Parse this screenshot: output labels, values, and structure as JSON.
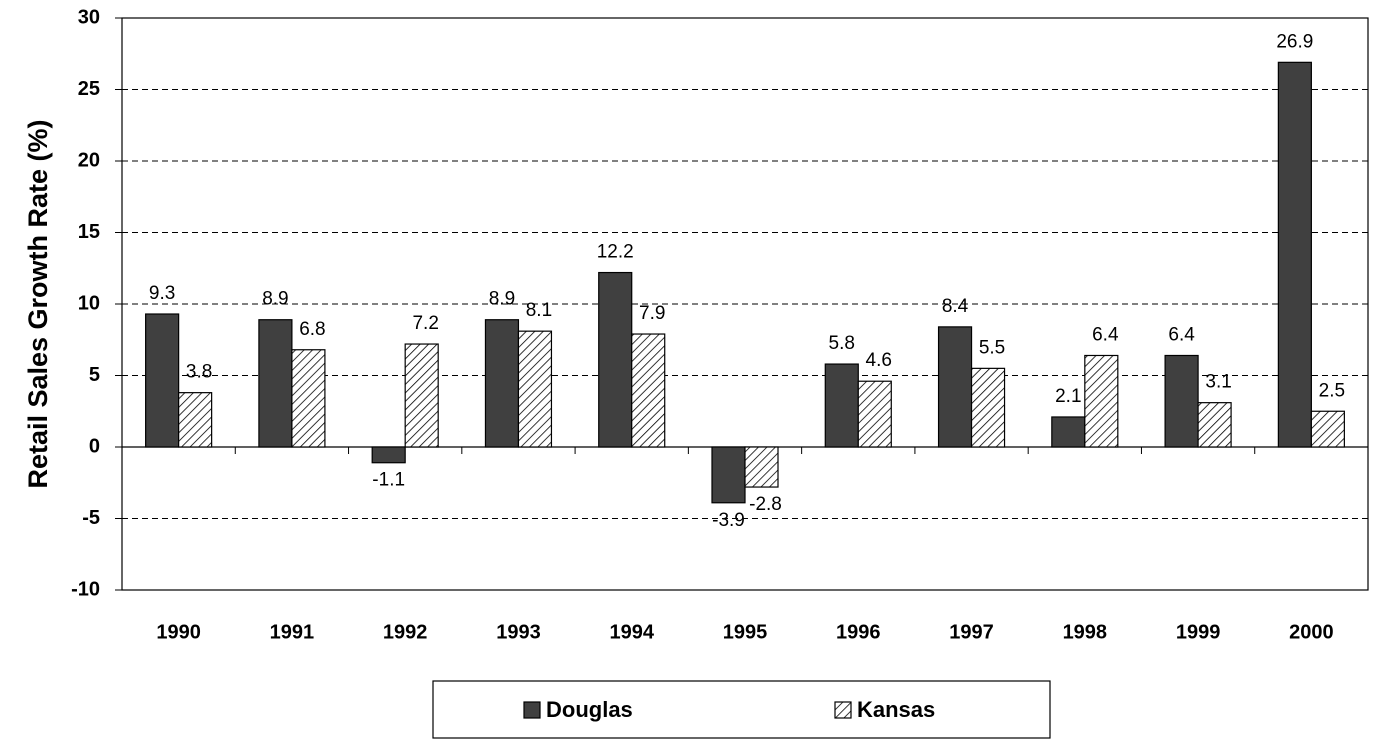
{
  "chart_data": {
    "type": "bar",
    "y_label": "Retail Sales Growth Rate (%)",
    "categories": [
      "1990",
      "1991",
      "1992",
      "1993",
      "1994",
      "1995",
      "1996",
      "1997",
      "1998",
      "1999",
      "2000"
    ],
    "series": [
      {
        "name": "Douglas",
        "color": "#404040",
        "values": [
          9.3,
          8.9,
          -1.1,
          8.9,
          12.2,
          -3.9,
          5.8,
          8.4,
          2.1,
          6.4,
          26.9
        ]
      },
      {
        "name": "Kansas",
        "color": "#ffffff",
        "values": [
          3.8,
          6.8,
          7.2,
          8.1,
          7.9,
          -2.8,
          4.6,
          5.5,
          6.4,
          3.1,
          2.5
        ]
      }
    ],
    "ylim": [
      -10,
      30
    ],
    "yticks": [
      -10,
      -5,
      0,
      5,
      10,
      15,
      20,
      25,
      30
    ],
    "grid": true,
    "legend": "bottom"
  }
}
